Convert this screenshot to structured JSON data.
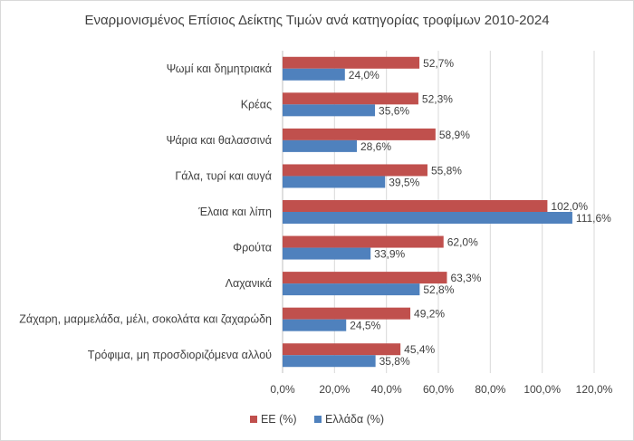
{
  "chart_data": {
    "type": "bar",
    "orientation": "horizontal",
    "title": "Εναρμονισμένος Επίσιος Δείκτης Τιμών ανά κατηγορίας τροφίμων 2010-2024",
    "categories": [
      "Ψωμί και δημητριακά",
      "Κρέας",
      "Ψάρια και θαλασσινά",
      "Γάλα, τυρί και αυγά",
      "Έλαια και λίπη",
      "Φρούτα",
      "Λαχανικά",
      "Ζάχαρη, μαρμελάδα, μέλι, σοκολάτα και ζαχαρώδη",
      "Τρόφιμα, μη προσδιοριζόμενα αλλού"
    ],
    "series": [
      {
        "name": "ΕΕ (%)",
        "color": "#c0504d",
        "values": [
          52.7,
          52.3,
          58.9,
          55.8,
          102.0,
          62.0,
          63.3,
          49.2,
          45.4
        ],
        "labels": [
          "52,7%",
          "52,3%",
          "58,9%",
          "55,8%",
          "102,0%",
          "62,0%",
          "63,3%",
          "49,2%",
          "45,4%"
        ]
      },
      {
        "name": "Ελλάδα (%)",
        "color": "#4f81bd",
        "values": [
          24.0,
          35.6,
          28.6,
          39.5,
          111.6,
          33.9,
          52.8,
          24.5,
          35.8
        ],
        "labels": [
          "24,0%",
          "35,6%",
          "28,6%",
          "39,5%",
          "111,6%",
          "33,9%",
          "52,8%",
          "24,5%",
          "35,8%"
        ]
      }
    ],
    "xlim": [
      0,
      120
    ],
    "ticks": [
      0,
      20,
      40,
      60,
      80,
      100,
      120
    ],
    "tick_labels": [
      "0,0%",
      "20,0%",
      "40,0%",
      "60,0%",
      "80,0%",
      "100,0%",
      "120,0%"
    ],
    "grid": true,
    "legend_position": "bottom"
  }
}
